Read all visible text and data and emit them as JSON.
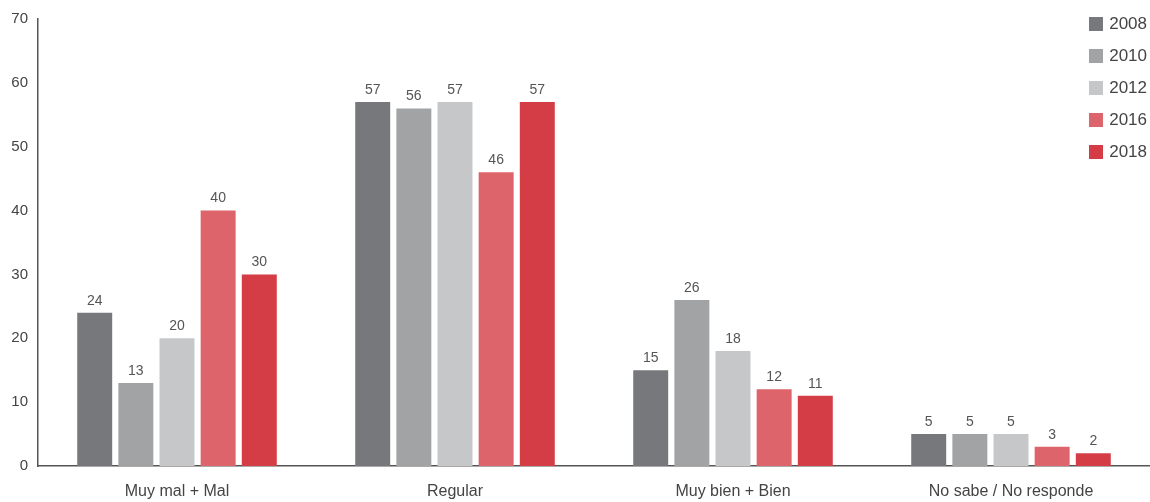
{
  "chart_data": {
    "type": "bar",
    "categories": [
      "Muy mal + Mal",
      "Regular",
      "Muy bien + Bien",
      "No sabe / No responde"
    ],
    "series": [
      {
        "name": "2008",
        "color": "#77787b",
        "values": [
          24,
          57,
          15,
          5
        ]
      },
      {
        "name": "2010",
        "color": "#a2a3a5",
        "values": [
          13,
          56,
          26,
          5
        ]
      },
      {
        "name": "2012",
        "color": "#c6c7c9",
        "values": [
          20,
          57,
          18,
          5
        ]
      },
      {
        "name": "2016",
        "color": "#dd646b",
        "values": [
          40,
          46,
          12,
          3
        ]
      },
      {
        "name": "2018",
        "color": "#d43d46",
        "values": [
          30,
          57,
          11,
          2
        ]
      }
    ],
    "ylim": [
      0,
      70
    ],
    "yticks": [
      0,
      10,
      20,
      30,
      40,
      50,
      60,
      70
    ],
    "data_labels": true,
    "legend": "top right"
  }
}
